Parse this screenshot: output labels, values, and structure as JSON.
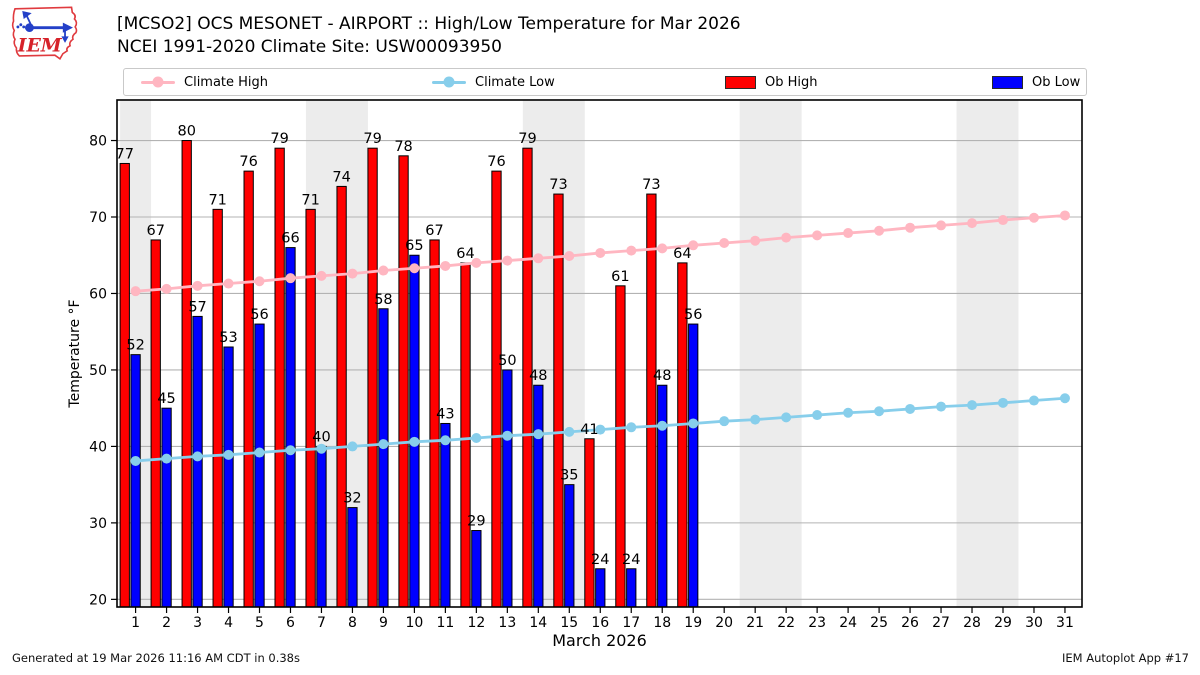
{
  "header": {
    "title_line1": "[MCSO2] OCS MESONET - AIRPORT :: High/Low Temperature for Mar 2026",
    "title_line2": "NCEI 1991-2020 Climate Site: USW00093950",
    "logo_text": "IEM"
  },
  "legend": {
    "items": [
      {
        "label": "Climate High",
        "type": "line-marker",
        "color": "#ffb6c1"
      },
      {
        "label": "Climate Low",
        "type": "line-marker",
        "color": "#87ceeb"
      },
      {
        "label": "Ob High",
        "type": "swatch",
        "color": "#ff0000"
      },
      {
        "label": "Ob Low",
        "type": "swatch",
        "color": "#0000ff"
      }
    ]
  },
  "chart_data": {
    "type": "bar",
    "title": "[MCSO2] OCS MESONET - AIRPORT :: High/Low Temperature for Mar 2026",
    "subtitle": "NCEI 1991-2020 Climate Site: USW00093950",
    "xlabel": "March 2026",
    "ylabel": "Temperature °F",
    "days": [
      1,
      2,
      3,
      4,
      5,
      6,
      7,
      8,
      9,
      10,
      11,
      12,
      13,
      14,
      15,
      16,
      17,
      18,
      19,
      20,
      21,
      22,
      23,
      24,
      25,
      26,
      27,
      28,
      29,
      30,
      31
    ],
    "series": [
      {
        "name": "Ob High",
        "type": "bar",
        "color": "#ff0000",
        "values": [
          77,
          67,
          80,
          71,
          76,
          79,
          71,
          74,
          79,
          78,
          67,
          64,
          76,
          79,
          73,
          41,
          61,
          73,
          64,
          null,
          null,
          null,
          null,
          null,
          null,
          null,
          null,
          null,
          null,
          null,
          null
        ]
      },
      {
        "name": "Ob Low",
        "type": "bar",
        "color": "#0000ff",
        "values": [
          52,
          45,
          57,
          53,
          56,
          66,
          40,
          32,
          58,
          65,
          43,
          29,
          50,
          48,
          35,
          24,
          24,
          48,
          56,
          null,
          null,
          null,
          null,
          null,
          null,
          null,
          null,
          null,
          null,
          null,
          null
        ]
      },
      {
        "name": "Climate High",
        "type": "line",
        "color": "#ffb6c1",
        "values": [
          60.3,
          60.6,
          61.0,
          61.3,
          61.6,
          62.0,
          62.3,
          62.6,
          63.0,
          63.3,
          63.6,
          64.0,
          64.3,
          64.6,
          64.9,
          65.3,
          65.6,
          65.9,
          66.3,
          66.6,
          66.9,
          67.3,
          67.6,
          67.9,
          68.2,
          68.6,
          68.9,
          69.2,
          69.6,
          69.9,
          70.2
        ]
      },
      {
        "name": "Climate Low",
        "type": "line",
        "color": "#87ceeb",
        "values": [
          38.1,
          38.4,
          38.7,
          38.9,
          39.2,
          39.5,
          39.7,
          40.0,
          40.3,
          40.6,
          40.8,
          41.1,
          41.4,
          41.6,
          41.9,
          42.2,
          42.5,
          42.7,
          43.0,
          43.3,
          43.5,
          43.8,
          44.1,
          44.4,
          44.6,
          44.9,
          45.2,
          45.4,
          45.7,
          46.0,
          46.3
        ]
      }
    ],
    "yticks": [
      20,
      30,
      40,
      50,
      60,
      70,
      80
    ],
    "ylim": [
      19.0,
      85.3
    ],
    "xlim": [
      0.4,
      31.55
    ],
    "grid": "horizontal",
    "legend_position": "top",
    "weekend_bands": [
      [
        0.5,
        1.5
      ],
      [
        6.5,
        8.5
      ],
      [
        13.5,
        15.5
      ],
      [
        20.5,
        22.5
      ],
      [
        27.5,
        29.5
      ]
    ],
    "band_color": "#ececec",
    "grid_color": "#b3b3b3"
  },
  "footer": {
    "left": "Generated at 19 Mar 2026 11:16 AM CDT in 0.38s",
    "right": "IEM Autoplot App #17"
  }
}
